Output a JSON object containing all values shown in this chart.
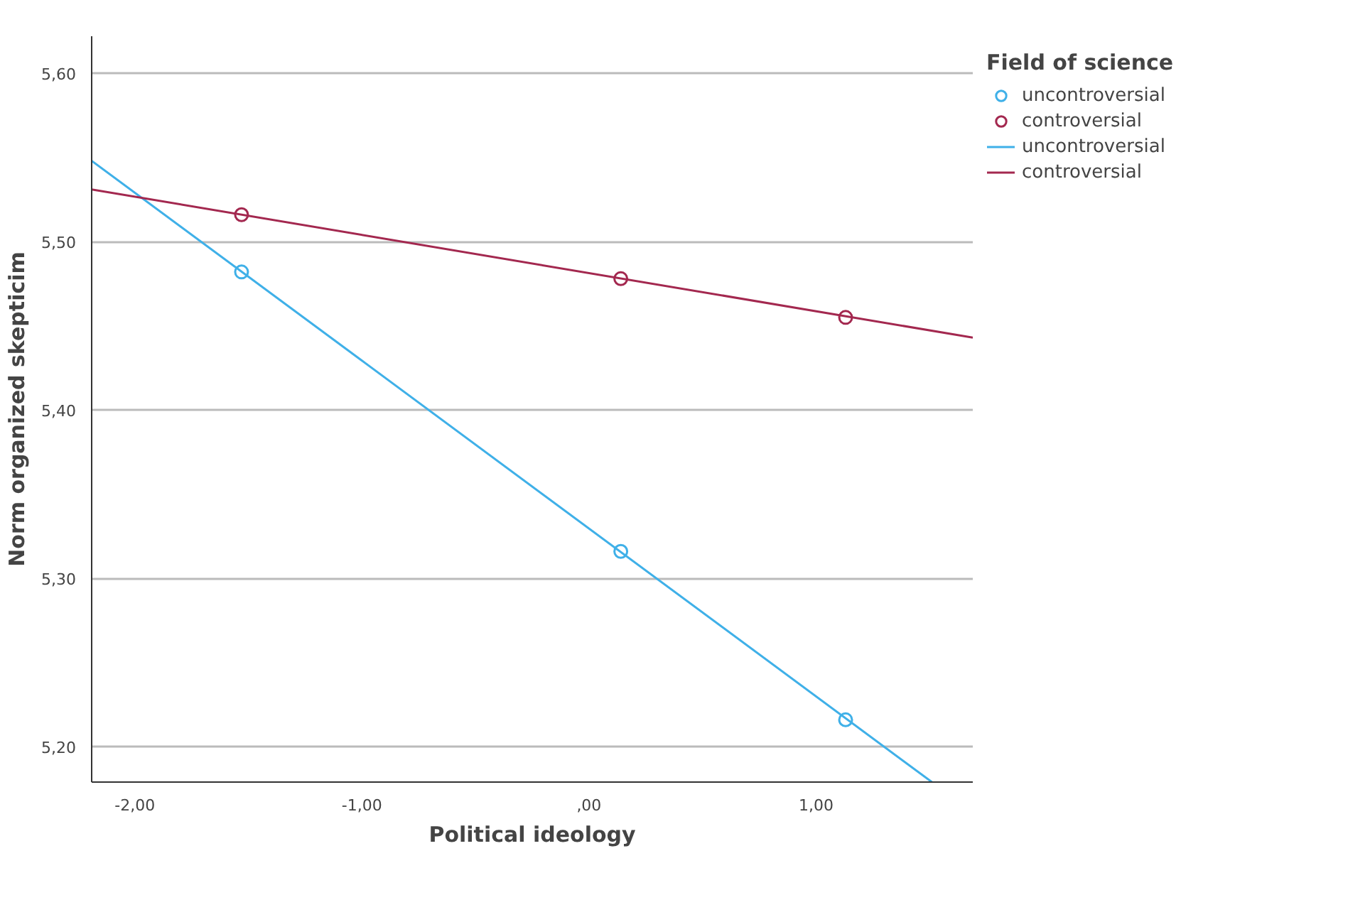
{
  "chart_data": {
    "type": "scatter",
    "xlabel": "Political ideology",
    "ylabel": "Norm organized skepticim",
    "legend_title": "Field of science",
    "x": [
      -1.53,
      0.14,
      1.13
    ],
    "series": [
      {
        "name": "uncontroversial",
        "marker": "circle",
        "color": "#3fb0e8",
        "values": [
          5.482,
          5.316,
          5.216
        ]
      },
      {
        "name": "controversial",
        "marker": "circle",
        "color": "#a3284f",
        "values": [
          5.516,
          5.478,
          5.455
        ]
      },
      {
        "name": "uncontroversial",
        "type": "line",
        "marker": "none",
        "color": "#3fb0e8",
        "x": [
          -2.19,
          1.51
        ],
        "values": [
          5.548,
          5.179
        ]
      },
      {
        "name": "controversial",
        "type": "line",
        "marker": "none",
        "color": "#a3284f",
        "x": [
          -2.19,
          1.69
        ],
        "values": [
          5.531,
          5.443
        ]
      }
    ],
    "xlim": [
      -2.19,
      1.69
    ],
    "ylim": [
      5.179,
      5.622
    ],
    "xticks": [
      {
        "value": -2,
        "label": "-2,00"
      },
      {
        "value": -1,
        "label": "-1,00"
      },
      {
        "value": 0,
        "label": ",00"
      },
      {
        "value": 1,
        "label": "1,00"
      }
    ],
    "yticks": [
      {
        "value": 5.2,
        "label": "5,20"
      },
      {
        "value": 5.3,
        "label": "5,30"
      },
      {
        "value": 5.4,
        "label": "5,40"
      },
      {
        "value": 5.5,
        "label": "5,50"
      },
      {
        "value": 5.6,
        "label": "5,60"
      }
    ],
    "grid": "y",
    "legend": "right",
    "line_style": "solid"
  }
}
